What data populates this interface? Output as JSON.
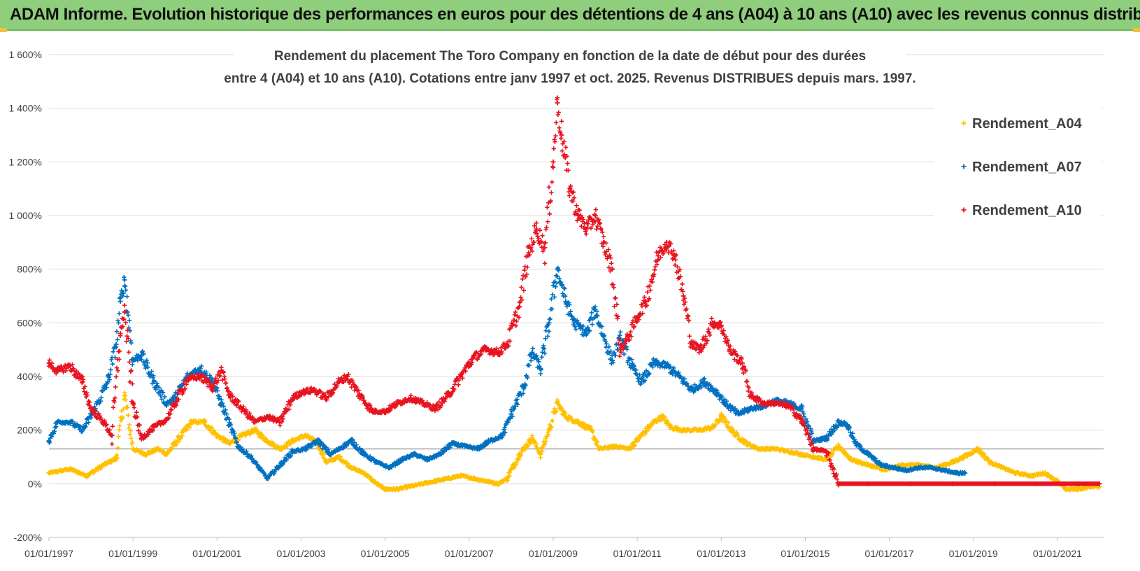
{
  "banner": {
    "title": "ADAM Informe. Evolution historique des performances en euros pour des détentions de 4 ans (A04) à 10 ans (A10) avec les revenus connus distribués"
  },
  "colors": {
    "banner": "#8fce7c",
    "A04": "#ffc000",
    "A07": "#0070c0",
    "A10": "#e8131f",
    "grid": "#d9d9d9",
    "reference_line": "#a6a6a6"
  },
  "chart_data": {
    "type": "scatter",
    "title_line1": "Rendement du placement The Toro Company en fonction de la date de début pour des durées",
    "title_line2": "entre 4 (A04) et 10 ans (A10). Cotations entre janv 1997 et oct. 2025. Revenus DISTRIBUES depuis mars. 1997.",
    "x_start_year": 1997,
    "x_end_year": 2022,
    "x_tick_labels": [
      "01/01/1997",
      "01/01/1999",
      "01/01/2001",
      "01/01/2003",
      "01/01/2005",
      "01/01/2007",
      "01/01/2009",
      "01/01/2011",
      "01/01/2013",
      "01/01/2015",
      "01/01/2017",
      "01/01/2019",
      "01/01/2021"
    ],
    "y_tick_labels": [
      "1 600%",
      "1 400%",
      "1 200%",
      "1 000%",
      "800%",
      "600%",
      "400%",
      "200%",
      "0%",
      "-200%"
    ],
    "ylim": [
      -200,
      1600
    ],
    "reference_line_value": 130,
    "legend_position": "top-right",
    "series": [
      {
        "name": "Rendement_A04",
        "color": "#ffc000",
        "points": [
          [
            1997.0,
            40
          ],
          [
            1997.5,
            55
          ],
          [
            1997.9,
            30
          ],
          [
            1998.3,
            70
          ],
          [
            1998.6,
            95
          ],
          [
            1998.8,
            330
          ],
          [
            1999.0,
            130
          ],
          [
            1999.3,
            110
          ],
          [
            1999.6,
            130
          ],
          [
            1999.8,
            110
          ],
          [
            2000.1,
            170
          ],
          [
            2000.4,
            230
          ],
          [
            2000.7,
            230
          ],
          [
            2001.0,
            180
          ],
          [
            2001.3,
            150
          ],
          [
            2001.6,
            180
          ],
          [
            2001.9,
            200
          ],
          [
            2002.2,
            160
          ],
          [
            2002.5,
            130
          ],
          [
            2002.8,
            160
          ],
          [
            2003.1,
            180
          ],
          [
            2003.4,
            150
          ],
          [
            2003.6,
            80
          ],
          [
            2003.9,
            100
          ],
          [
            2004.2,
            60
          ],
          [
            2004.5,
            40
          ],
          [
            2004.8,
            0
          ],
          [
            2005.0,
            -20
          ],
          [
            2005.3,
            -20
          ],
          [
            2005.6,
            -10
          ],
          [
            2005.9,
            0
          ],
          [
            2006.2,
            10
          ],
          [
            2006.5,
            20
          ],
          [
            2006.8,
            30
          ],
          [
            2007.1,
            20
          ],
          [
            2007.4,
            10
          ],
          [
            2007.7,
            0
          ],
          [
            2007.9,
            20
          ],
          [
            2008.2,
            110
          ],
          [
            2008.5,
            170
          ],
          [
            2008.7,
            110
          ],
          [
            2008.9,
            200
          ],
          [
            2009.1,
            300
          ],
          [
            2009.3,
            250
          ],
          [
            2009.6,
            230
          ],
          [
            2009.9,
            200
          ],
          [
            2010.1,
            130
          ],
          [
            2010.5,
            140
          ],
          [
            2010.8,
            130
          ],
          [
            2011.1,
            180
          ],
          [
            2011.4,
            230
          ],
          [
            2011.6,
            250
          ],
          [
            2011.8,
            210
          ],
          [
            2012.1,
            200
          ],
          [
            2012.5,
            200
          ],
          [
            2012.8,
            210
          ],
          [
            2013.0,
            250
          ],
          [
            2013.3,
            190
          ],
          [
            2013.6,
            150
          ],
          [
            2013.9,
            130
          ],
          [
            2014.3,
            130
          ],
          [
            2014.6,
            120
          ],
          [
            2014.9,
            110
          ],
          [
            2015.2,
            100
          ],
          [
            2015.5,
            90
          ],
          [
            2015.8,
            140
          ],
          [
            2016.1,
            90
          ],
          [
            2016.5,
            70
          ],
          [
            2016.9,
            50
          ],
          [
            2017.3,
            70
          ],
          [
            2017.7,
            70
          ],
          [
            2018.1,
            60
          ],
          [
            2018.5,
            80
          ],
          [
            2018.9,
            110
          ],
          [
            2019.1,
            130
          ],
          [
            2019.4,
            80
          ],
          [
            2019.7,
            60
          ],
          [
            2020.0,
            40
          ],
          [
            2020.4,
            30
          ],
          [
            2020.7,
            40
          ],
          [
            2021.0,
            10
          ],
          [
            2021.2,
            -20
          ],
          [
            2021.5,
            -20
          ],
          [
            2021.8,
            -10
          ],
          [
            2022.0,
            -10
          ]
        ]
      },
      {
        "name": "Rendement_A07",
        "color": "#0070c0",
        "points": [
          [
            1997.0,
            160
          ],
          [
            1997.2,
            230
          ],
          [
            1997.5,
            230
          ],
          [
            1997.8,
            200
          ],
          [
            1998.1,
            280
          ],
          [
            1998.4,
            380
          ],
          [
            1998.6,
            520
          ],
          [
            1998.7,
            680
          ],
          [
            1998.8,
            760
          ],
          [
            1999.0,
            460
          ],
          [
            1999.2,
            480
          ],
          [
            1999.5,
            380
          ],
          [
            1999.8,
            300
          ],
          [
            2000.0,
            320
          ],
          [
            2000.3,
            400
          ],
          [
            2000.6,
            430
          ],
          [
            2000.9,
            380
          ],
          [
            2001.1,
            300
          ],
          [
            2001.3,
            220
          ],
          [
            2001.5,
            140
          ],
          [
            2001.8,
            100
          ],
          [
            2002.0,
            60
          ],
          [
            2002.2,
            20
          ],
          [
            2002.5,
            70
          ],
          [
            2002.8,
            120
          ],
          [
            2003.1,
            130
          ],
          [
            2003.4,
            160
          ],
          [
            2003.7,
            110
          ],
          [
            2003.9,
            130
          ],
          [
            2004.2,
            160
          ],
          [
            2004.5,
            110
          ],
          [
            2004.8,
            80
          ],
          [
            2005.1,
            60
          ],
          [
            2005.4,
            90
          ],
          [
            2005.7,
            110
          ],
          [
            2006.0,
            90
          ],
          [
            2006.3,
            110
          ],
          [
            2006.6,
            150
          ],
          [
            2006.9,
            140
          ],
          [
            2007.2,
            130
          ],
          [
            2007.5,
            160
          ],
          [
            2007.8,
            180
          ],
          [
            2008.0,
            260
          ],
          [
            2008.3,
            360
          ],
          [
            2008.5,
            490
          ],
          [
            2008.7,
            430
          ],
          [
            2008.9,
            600
          ],
          [
            2009.1,
            800
          ],
          [
            2009.3,
            680
          ],
          [
            2009.5,
            600
          ],
          [
            2009.8,
            560
          ],
          [
            2010.0,
            650
          ],
          [
            2010.2,
            550
          ],
          [
            2010.4,
            460
          ],
          [
            2010.6,
            540
          ],
          [
            2010.9,
            430
          ],
          [
            2011.1,
            380
          ],
          [
            2011.4,
            450
          ],
          [
            2011.7,
            440
          ],
          [
            2012.0,
            400
          ],
          [
            2012.3,
            350
          ],
          [
            2012.6,
            380
          ],
          [
            2012.9,
            340
          ],
          [
            2013.1,
            300
          ],
          [
            2013.4,
            260
          ],
          [
            2013.7,
            280
          ],
          [
            2014.0,
            290
          ],
          [
            2014.3,
            310
          ],
          [
            2014.6,
            300
          ],
          [
            2014.9,
            280
          ],
          [
            2015.2,
            160
          ],
          [
            2015.5,
            170
          ],
          [
            2015.8,
            230
          ],
          [
            2016.0,
            220
          ],
          [
            2016.2,
            150
          ],
          [
            2016.5,
            110
          ],
          [
            2016.8,
            70
          ],
          [
            2017.1,
            60
          ],
          [
            2017.4,
            50
          ],
          [
            2017.7,
            60
          ],
          [
            2018.0,
            60
          ],
          [
            2018.3,
            50
          ],
          [
            2018.6,
            40
          ],
          [
            2018.8,
            40
          ]
        ]
      },
      {
        "name": "Rendement_A10",
        "color": "#e8131f",
        "points": [
          [
            1997.0,
            450
          ],
          [
            1997.2,
            420
          ],
          [
            1997.5,
            440
          ],
          [
            1997.8,
            380
          ],
          [
            1998.0,
            280
          ],
          [
            1998.3,
            230
          ],
          [
            1998.5,
            180
          ],
          [
            1998.7,
            560
          ],
          [
            1998.8,
            640
          ],
          [
            1999.0,
            300
          ],
          [
            1999.2,
            170
          ],
          [
            1999.5,
            210
          ],
          [
            1999.8,
            240
          ],
          [
            2000.0,
            300
          ],
          [
            2000.3,
            390
          ],
          [
            2000.6,
            400
          ],
          [
            2000.9,
            360
          ],
          [
            2001.1,
            420
          ],
          [
            2001.3,
            330
          ],
          [
            2001.6,
            280
          ],
          [
            2001.9,
            230
          ],
          [
            2002.2,
            250
          ],
          [
            2002.5,
            230
          ],
          [
            2002.8,
            320
          ],
          [
            2003.0,
            340
          ],
          [
            2003.3,
            350
          ],
          [
            2003.6,
            320
          ],
          [
            2003.9,
            380
          ],
          [
            2004.1,
            400
          ],
          [
            2004.4,
            330
          ],
          [
            2004.7,
            270
          ],
          [
            2005.0,
            270
          ],
          [
            2005.3,
            300
          ],
          [
            2005.6,
            320
          ],
          [
            2005.9,
            300
          ],
          [
            2006.2,
            280
          ],
          [
            2006.5,
            330
          ],
          [
            2006.8,
            400
          ],
          [
            2007.1,
            470
          ],
          [
            2007.4,
            500
          ],
          [
            2007.7,
            490
          ],
          [
            2007.9,
            520
          ],
          [
            2008.2,
            660
          ],
          [
            2008.4,
            850
          ],
          [
            2008.6,
            950
          ],
          [
            2008.8,
            880
          ],
          [
            2009.0,
            1200
          ],
          [
            2009.1,
            1420
          ],
          [
            2009.2,
            1300
          ],
          [
            2009.4,
            1100
          ],
          [
            2009.6,
            1000
          ],
          [
            2009.8,
            950
          ],
          [
            2010.0,
            1000
          ],
          [
            2010.2,
            900
          ],
          [
            2010.4,
            800
          ],
          [
            2010.6,
            500
          ],
          [
            2010.8,
            550
          ],
          [
            2011.0,
            620
          ],
          [
            2011.2,
            680
          ],
          [
            2011.5,
            850
          ],
          [
            2011.7,
            900
          ],
          [
            2011.9,
            850
          ],
          [
            2012.1,
            700
          ],
          [
            2012.3,
            520
          ],
          [
            2012.5,
            500
          ],
          [
            2012.8,
            600
          ],
          [
            2013.0,
            590
          ],
          [
            2013.2,
            500
          ],
          [
            2013.5,
            450
          ],
          [
            2013.7,
            330
          ],
          [
            2014.0,
            300
          ],
          [
            2014.3,
            300
          ],
          [
            2014.6,
            290
          ],
          [
            2014.9,
            240
          ],
          [
            2015.2,
            130
          ],
          [
            2015.5,
            120
          ],
          [
            2015.8,
            0
          ],
          [
            2016.5,
            0
          ],
          [
            2017.5,
            0
          ],
          [
            2018.5,
            0
          ],
          [
            2019.5,
            0
          ],
          [
            2020.5,
            0
          ],
          [
            2021.5,
            0
          ],
          [
            2022.0,
            0
          ]
        ]
      }
    ]
  }
}
